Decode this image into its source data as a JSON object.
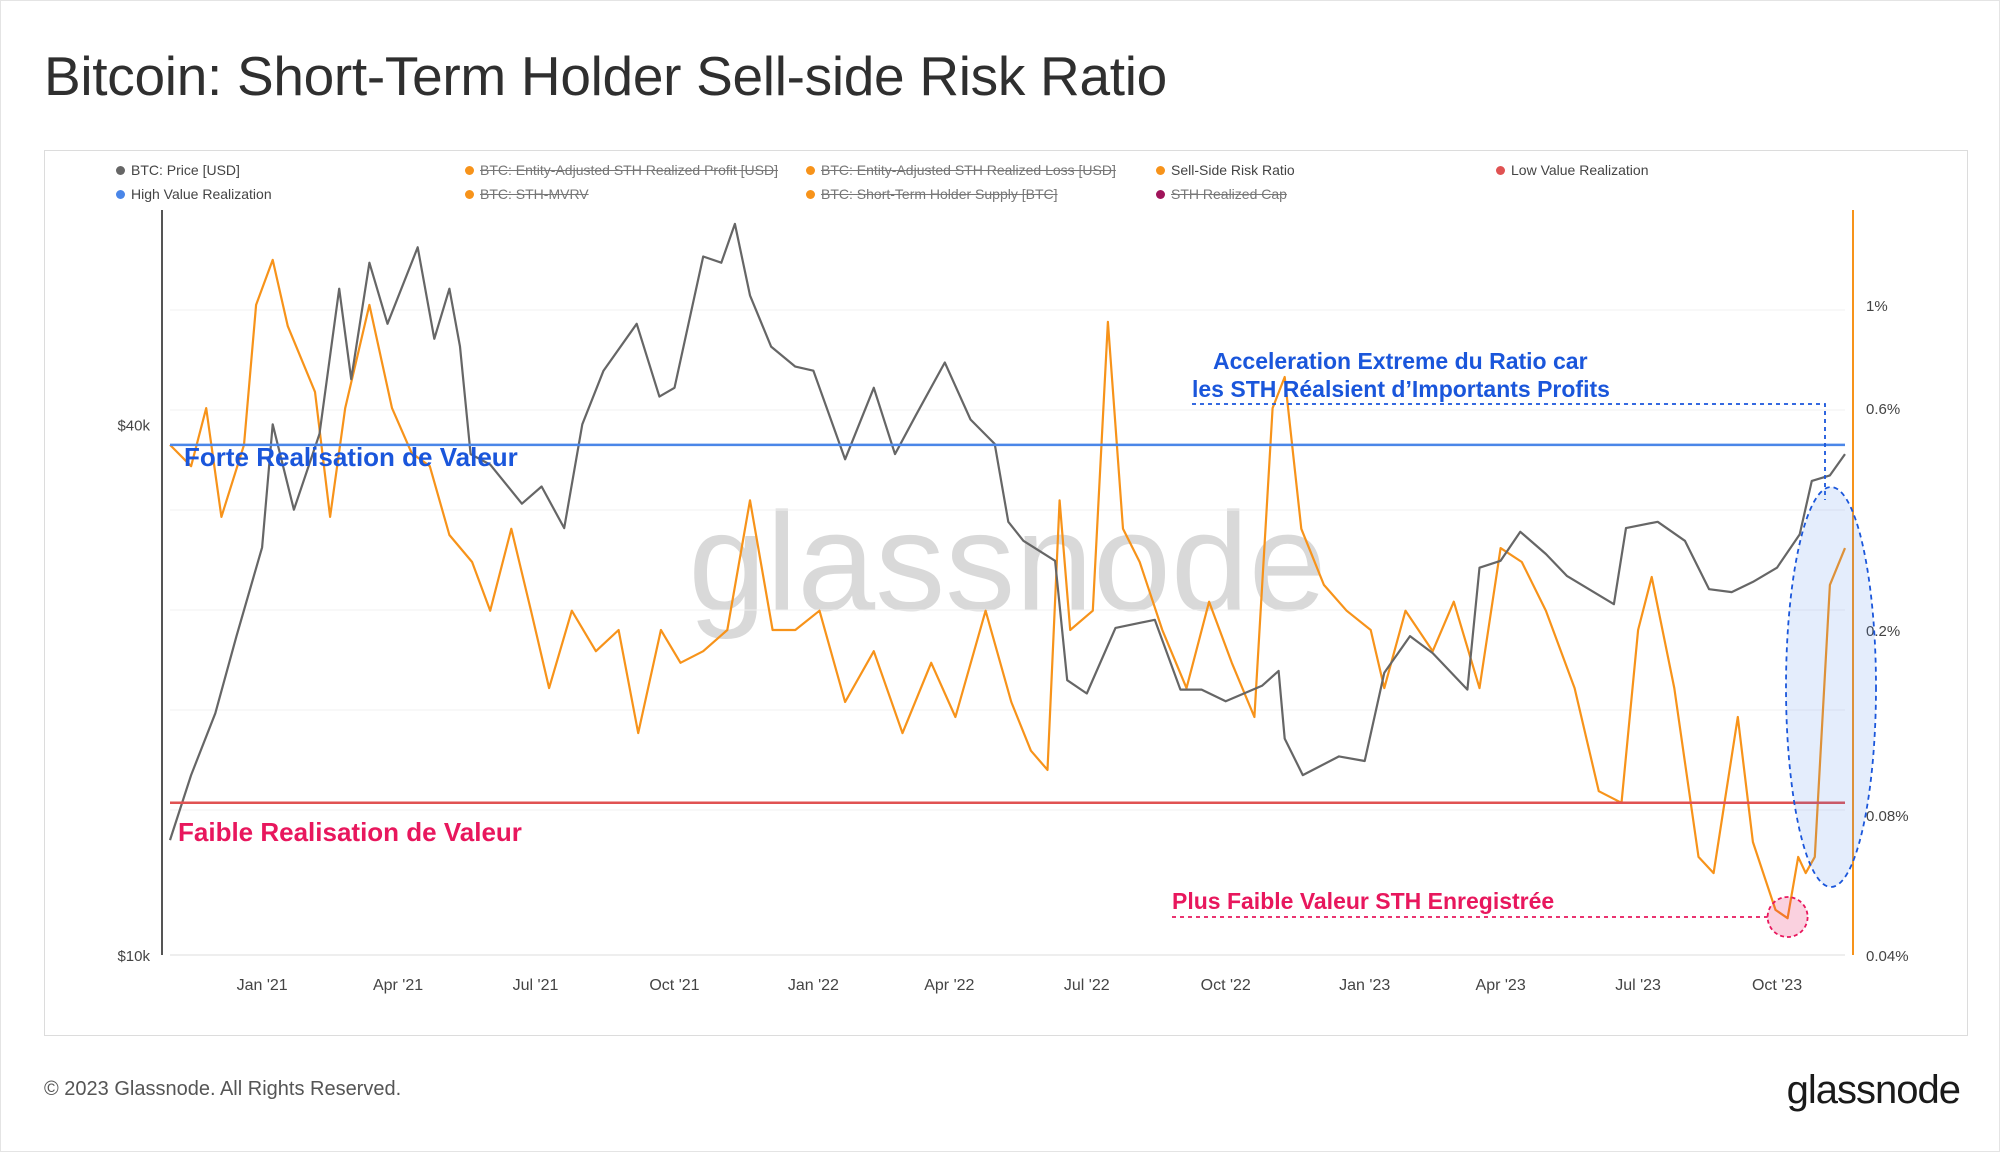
{
  "title": "Bitcoin: Short-Term Holder Sell-side Risk Ratio",
  "legend": [
    {
      "label": "BTC: Price [USD]",
      "color": "#666666",
      "active": true
    },
    {
      "label": "BTC: Entity-Adjusted STH Realized Profit [USD]",
      "color": "#f7931a",
      "active": false
    },
    {
      "label": "BTC: Entity-Adjusted STH Realized Loss [USD]",
      "color": "#f7931a",
      "active": false
    },
    {
      "label": "Sell-Side Risk Ratio",
      "color": "#f7931a",
      "active": true
    },
    {
      "label": "Low Value Realization",
      "color": "#e05252",
      "active": true
    },
    {
      "label": "High Value Realization",
      "color": "#4a86e8",
      "active": true
    },
    {
      "label": "BTC: STH-MVRV",
      "color": "#f7931a",
      "active": false
    },
    {
      "label": "BTC: Short-Term Holder Supply [BTC]",
      "color": "#f7931a",
      "active": false
    },
    {
      "label": "STH Realized Cap",
      "color": "#a0145a",
      "active": false
    }
  ],
  "annotations": {
    "high_label": "Forte Realisation de Valeur",
    "low_label": "Faible Realisation de Valeur",
    "accel_line1": "Acceleration Extreme du Ratio car",
    "accel_line2": "les STH Réalsient d’Importants Profits",
    "lowest_label": "Plus Faible Valeur STH Enregistrée"
  },
  "watermark": "glassnode",
  "footer": {
    "copyright": "© 2023 Glassnode. All Rights Reserved.",
    "logo": "glassnode"
  },
  "colors": {
    "price": "#666666",
    "ratio": "#f7931a",
    "high": "#4a86e8",
    "low": "#e05252",
    "accel": "#1a56db",
    "lowest": "#e8175d"
  },
  "chart_data": {
    "type": "line",
    "x_ticks": [
      "Jan '21",
      "Apr '21",
      "Jul '21",
      "Oct '21",
      "Jan '22",
      "Apr '22",
      "Jul '22",
      "Oct '22",
      "Jan '23",
      "Apr '23",
      "Jul '23",
      "Oct '23"
    ],
    "y_left": {
      "scale": "log",
      "ticks": [
        "$10k",
        "$40k"
      ],
      "range": [
        10000,
        70000
      ]
    },
    "y_right": {
      "scale": "log",
      "ticks": [
        "0.04%",
        "0.08%",
        "0.2%",
        "0.6%",
        "1%"
      ],
      "range": [
        0.04,
        1.6
      ]
    },
    "thresholds": {
      "high_value_realization": 0.5,
      "low_value_realization": 0.085
    },
    "series": [
      {
        "name": "BTC: Price [USD]",
        "axis": "left",
        "x": [
          "2020-11-01",
          "2020-11-15",
          "2020-12-01",
          "2020-12-15",
          "2021-01-01",
          "2021-01-08",
          "2021-01-22",
          "2021-02-08",
          "2021-02-21",
          "2021-03-01",
          "2021-03-13",
          "2021-03-25",
          "2021-04-14",
          "2021-04-25",
          "2021-05-05",
          "2021-05-12",
          "2021-05-19",
          "2021-06-01",
          "2021-06-22",
          "2021-07-05",
          "2021-07-20",
          "2021-08-01",
          "2021-08-15",
          "2021-09-06",
          "2021-09-21",
          "2021-10-01",
          "2021-10-20",
          "2021-11-01",
          "2021-11-10",
          "2021-11-20",
          "2021-12-04",
          "2021-12-20",
          "2022-01-01",
          "2022-01-22",
          "2022-02-10",
          "2022-02-24",
          "2022-03-10",
          "2022-03-29",
          "2022-04-15",
          "2022-05-01",
          "2022-05-10",
          "2022-05-20",
          "2022-06-10",
          "2022-06-18",
          "2022-07-01",
          "2022-07-20",
          "2022-08-15",
          "2022-09-01",
          "2022-09-15",
          "2022-10-01",
          "2022-10-25",
          "2022-11-05",
          "2022-11-09",
          "2022-11-21",
          "2022-12-15",
          "2023-01-01",
          "2023-01-14",
          "2023-01-31",
          "2023-02-15",
          "2023-03-10",
          "2023-03-18",
          "2023-04-01",
          "2023-04-14",
          "2023-05-01",
          "2023-05-15",
          "2023-06-15",
          "2023-06-23",
          "2023-07-14",
          "2023-08-01",
          "2023-08-17",
          "2023-09-01",
          "2023-09-15",
          "2023-10-01",
          "2023-10-16",
          "2023-10-24",
          "2023-11-05",
          "2023-11-15"
        ],
        "values": [
          13500,
          16000,
          18800,
          23000,
          29000,
          40000,
          32000,
          39000,
          57000,
          45000,
          61000,
          52000,
          63500,
          50000,
          57000,
          49000,
          37000,
          36000,
          32500,
          34000,
          30500,
          40000,
          46000,
          52000,
          43000,
          44000,
          62000,
          61000,
          67500,
          56000,
          49000,
          46500,
          46000,
          36500,
          44000,
          37000,
          41000,
          47000,
          40500,
          38000,
          31000,
          29500,
          28000,
          20500,
          19800,
          23500,
          24000,
          20000,
          20000,
          19400,
          20200,
          21000,
          17600,
          16000,
          16800,
          16600,
          20900,
          23000,
          22000,
          20000,
          27500,
          28000,
          30200,
          28500,
          26900,
          25000,
          30500,
          31000,
          29500,
          26000,
          25800,
          26500,
          27500,
          30000,
          34500,
          35000,
          37000
        ]
      },
      {
        "name": "Sell-Side Risk Ratio",
        "axis": "right",
        "x": [
          "2020-11-01",
          "2020-11-15",
          "2020-11-25",
          "2020-12-05",
          "2020-12-20",
          "2020-12-28",
          "2021-01-08",
          "2021-01-18",
          "2021-02-05",
          "2021-02-15",
          "2021-02-25",
          "2021-03-13",
          "2021-03-28",
          "2021-04-10",
          "2021-04-22",
          "2021-05-05",
          "2021-05-20",
          "2021-06-01",
          "2021-06-15",
          "2021-06-28",
          "2021-07-10",
          "2021-07-25",
          "2021-08-10",
          "2021-08-25",
          "2021-09-07",
          "2021-09-22",
          "2021-10-05",
          "2021-10-20",
          "2021-11-05",
          "2021-11-20",
          "2021-12-05",
          "2021-12-20",
          "2022-01-05",
          "2022-01-22",
          "2022-02-10",
          "2022-03-01",
          "2022-03-20",
          "2022-04-05",
          "2022-04-25",
          "2022-05-12",
          "2022-05-25",
          "2022-06-05",
          "2022-06-13",
          "2022-06-20",
          "2022-07-05",
          "2022-07-15",
          "2022-07-25",
          "2022-08-05",
          "2022-08-20",
          "2022-09-05",
          "2022-09-20",
          "2022-10-05",
          "2022-10-20",
          "2022-11-01",
          "2022-11-09",
          "2022-11-20",
          "2022-12-05",
          "2022-12-20",
          "2023-01-05",
          "2023-01-14",
          "2023-01-28",
          "2023-02-15",
          "2023-03-01",
          "2023-03-18",
          "2023-04-01",
          "2023-04-15",
          "2023-05-01",
          "2023-05-20",
          "2023-06-05",
          "2023-06-20",
          "2023-07-01",
          "2023-07-10",
          "2023-07-25",
          "2023-08-10",
          "2023-08-20",
          "2023-09-05",
          "2023-09-15",
          "2023-09-30",
          "2023-10-08",
          "2023-10-15",
          "2023-10-20",
          "2023-10-26",
          "2023-11-05",
          "2023-11-15"
        ],
        "values": [
          0.5,
          0.45,
          0.6,
          0.35,
          0.5,
          1.0,
          1.25,
          0.9,
          0.65,
          0.35,
          0.6,
          1.0,
          0.6,
          0.48,
          0.45,
          0.32,
          0.28,
          0.22,
          0.33,
          0.22,
          0.15,
          0.22,
          0.18,
          0.2,
          0.12,
          0.2,
          0.17,
          0.18,
          0.2,
          0.38,
          0.2,
          0.2,
          0.22,
          0.14,
          0.18,
          0.12,
          0.17,
          0.13,
          0.22,
          0.14,
          0.11,
          0.1,
          0.38,
          0.2,
          0.22,
          0.92,
          0.33,
          0.28,
          0.2,
          0.15,
          0.23,
          0.17,
          0.13,
          0.6,
          0.7,
          0.33,
          0.25,
          0.22,
          0.2,
          0.15,
          0.22,
          0.18,
          0.23,
          0.15,
          0.3,
          0.28,
          0.22,
          0.15,
          0.09,
          0.085,
          0.2,
          0.26,
          0.15,
          0.065,
          0.06,
          0.13,
          0.07,
          0.05,
          0.048,
          0.065,
          0.06,
          0.065,
          0.25,
          0.3
        ]
      }
    ]
  }
}
